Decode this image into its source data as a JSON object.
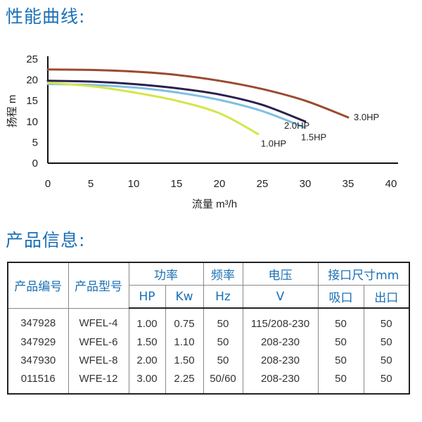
{
  "sections": {
    "performance_title": "性能曲线:",
    "product_info_title": "产品信息:"
  },
  "chart_data": {
    "type": "line",
    "title": "",
    "xlabel": "流量 m³/h",
    "ylabel": "扬程 m",
    "xlim": [
      0,
      40
    ],
    "ylim": [
      0,
      25
    ],
    "xticks": [
      0,
      5,
      10,
      15,
      20,
      25,
      30,
      35,
      40
    ],
    "yticks": [
      0,
      5,
      10,
      15,
      20,
      25
    ],
    "grid": false,
    "series": [
      {
        "name": "3.0HP",
        "label": "3.0HP",
        "color": "#9b4a2e",
        "points": [
          [
            0,
            22.5
          ],
          [
            5,
            22.4
          ],
          [
            10,
            22
          ],
          [
            15,
            21.2
          ],
          [
            20,
            19.8
          ],
          [
            25,
            17.8
          ],
          [
            30,
            15
          ],
          [
            35,
            11
          ]
        ]
      },
      {
        "name": "2.0HP",
        "label": "2.0HP",
        "color": "#2a1f4f",
        "points": [
          [
            0,
            19.8
          ],
          [
            5,
            19.6
          ],
          [
            10,
            19
          ],
          [
            15,
            18
          ],
          [
            20,
            16.5
          ],
          [
            25,
            14
          ],
          [
            30,
            10
          ]
        ]
      },
      {
        "name": "1.5HP",
        "label": "1.5HP",
        "color": "#7fbfe3",
        "points": [
          [
            0,
            19
          ],
          [
            5,
            18.8
          ],
          [
            10,
            18.2
          ],
          [
            15,
            17
          ],
          [
            20,
            15.2
          ],
          [
            25,
            12.5
          ],
          [
            30,
            8.5
          ]
        ]
      },
      {
        "name": "1.0HP",
        "label": "1.0HP",
        "color": "#d4e64a",
        "points": [
          [
            0,
            19.3
          ],
          [
            5,
            18.5
          ],
          [
            10,
            17
          ],
          [
            15,
            15
          ],
          [
            20,
            12
          ],
          [
            24.5,
            7
          ]
        ]
      }
    ]
  },
  "table": {
    "header_row1": [
      "产品编号",
      "产品型号",
      "功率",
      "频率",
      "电压",
      "接口尺寸mm"
    ],
    "header_row2": [
      "HP",
      "Kw",
      "Hz",
      "V",
      "吸口",
      "出口"
    ],
    "rows": [
      [
        "347928",
        "WFEL-4",
        "1.00",
        "0.75",
        "50",
        "115/208-230",
        "50",
        "50"
      ],
      [
        "347929",
        "WFEL-6",
        "1.50",
        "1.10",
        "50",
        "208-230",
        "50",
        "50"
      ],
      [
        "347930",
        "WFEL-8",
        "2.00",
        "1.50",
        "50",
        "208-230",
        "50",
        "50"
      ],
      [
        "011516",
        "WFE-12",
        "3.00",
        "2.25",
        "50/60",
        "208-230",
        "50",
        "50"
      ]
    ]
  }
}
